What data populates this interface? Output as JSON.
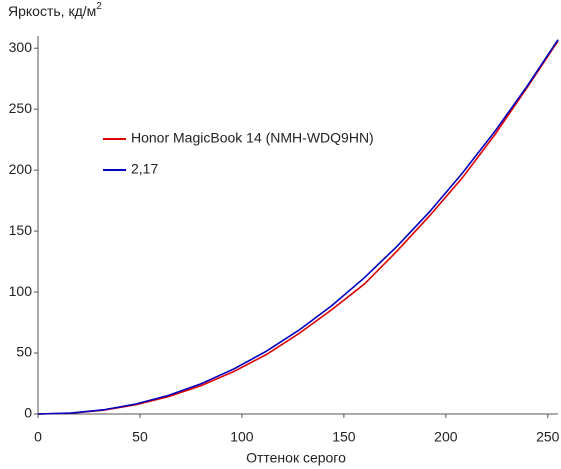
{
  "chart_data": {
    "type": "line",
    "y_label": "Яркость, кд/м",
    "y_label_sup": "2",
    "x_label": "Оттенок серого",
    "x": [
      0,
      16,
      32,
      48,
      64,
      80,
      96,
      112,
      128,
      144,
      160,
      176,
      192,
      208,
      224,
      240,
      255
    ],
    "series": [
      {
        "name": "Honor MagicBook 14 (NMH-WDQ9HN)",
        "color": "#e00000",
        "values": [
          0,
          0.7,
          3.1,
          7.6,
          14.3,
          23.3,
          34.8,
          48.8,
          66.0,
          85.5,
          106.5,
          133.5,
          162.5,
          193.5,
          229,
          268,
          306
        ]
      },
      {
        "name": "2,17",
        "color": "#0000c0",
        "values": [
          0,
          0.76,
          3.4,
          8.2,
          15.3,
          24.8,
          36.9,
          51.5,
          68.8,
          88.8,
          111.7,
          137.4,
          165.8,
          197.3,
          231.7,
          269.2,
          307
        ]
      }
    ],
    "xlim": [
      0,
      255
    ],
    "xticks": [
      0,
      50,
      100,
      150,
      200,
      250
    ],
    "ylim": [
      0,
      310
    ],
    "yticks": [
      0,
      50,
      100,
      150,
      200,
      250,
      300
    ]
  }
}
